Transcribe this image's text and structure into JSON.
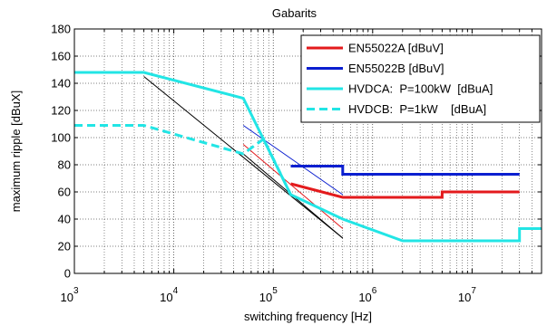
{
  "chart_data": {
    "type": "line",
    "title": "Gabarits",
    "xlabel": "switching frequency [Hz]",
    "ylabel": "maximum ripple  [dBuX]",
    "xscale": "log",
    "xlim": [
      1000,
      50000000
    ],
    "ylim": [
      0,
      180
    ],
    "yticks": [
      0,
      20,
      40,
      60,
      80,
      100,
      120,
      140,
      160,
      180
    ],
    "xticks": [
      {
        "base": "10",
        "exp": "3"
      },
      {
        "base": "10",
        "exp": "4"
      },
      {
        "base": "10",
        "exp": "5"
      },
      {
        "base": "10",
        "exp": "6"
      },
      {
        "base": "10",
        "exp": "7"
      }
    ],
    "grid": true,
    "legend_position": "top-right",
    "series": [
      {
        "name": "EN55022A [dBuV]",
        "color": "#e31a1c",
        "style": "solid",
        "x": [
          150000,
          500000,
          500000,
          5000000,
          5000000,
          30000000
        ],
        "y": [
          66,
          56,
          56,
          56,
          60,
          60
        ]
      },
      {
        "name": "EN55022B [dBuV]",
        "color": "#0b1fd0",
        "style": "solid",
        "x": [
          150000,
          500000,
          500000,
          30000000
        ],
        "y": [
          79,
          79,
          73,
          73
        ]
      },
      {
        "name": "HVDCA:  P=100kW  [dBuA]",
        "color": "#22e5e5",
        "style": "solid",
        "x": [
          1000,
          5000,
          50000,
          150000,
          500000,
          2000000,
          30000000,
          30000000,
          50000000
        ],
        "y": [
          148,
          148,
          129,
          58,
          40,
          24,
          24,
          33,
          33
        ]
      },
      {
        "name": "HVDCB:  P=1kW    [dBuA]",
        "color": "#22e5e5",
        "style": "dashed",
        "x": [
          1000,
          5000,
          50000,
          80000,
          150000
        ],
        "y": [
          109,
          109,
          88,
          99,
          58
        ]
      },
      {
        "name": "",
        "color": "#0b1fd0",
        "style": "thin",
        "x": [
          50000,
          500000
        ],
        "y": [
          109,
          58
        ]
      },
      {
        "name": "",
        "color": "#e31a1c",
        "style": "thin",
        "x": [
          50000,
          500000
        ],
        "y": [
          95,
          33
        ]
      },
      {
        "name": "",
        "color": "#000000",
        "style": "thin",
        "x": [
          5000,
          500000
        ],
        "y": [
          145,
          26
        ]
      },
      {
        "name": "",
        "color": "#000000",
        "style": "thin",
        "x": [
          50000,
          500000
        ],
        "y": [
          88,
          26
        ]
      }
    ]
  }
}
